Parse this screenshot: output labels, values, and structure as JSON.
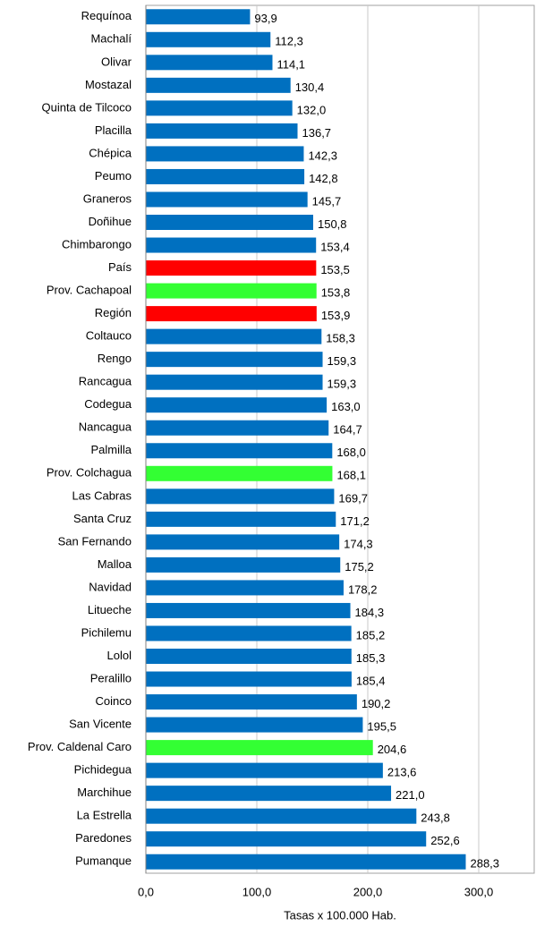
{
  "chart_data": {
    "type": "barh",
    "categories": [
      "Requínoa",
      "Machalí",
      "Olivar",
      "Mostazal",
      "Quinta de Tilcoco",
      "Placilla",
      "Chépica",
      "Peumo",
      "Graneros",
      "Doñihue",
      "Chimbarongo",
      "País",
      "Prov. Cachapoal",
      "Región",
      "Coltauco",
      "Rengo",
      "Rancagua",
      "Codegua",
      "Nancagua",
      "Palmilla",
      "Prov. Colchagua",
      "Las Cabras",
      "Santa Cruz",
      "San Fernando",
      "Malloa",
      "Navidad",
      "Litueche",
      "Pichilemu",
      "Lolol",
      "Peralillo",
      "Coinco",
      "San Vicente",
      "Prov. Caldenal Caro",
      "Pichidegua",
      "Marchihue",
      "La Estrella",
      "Paredones",
      "Pumanque"
    ],
    "values": [
      93.9,
      112.3,
      114.1,
      130.4,
      132.0,
      136.7,
      142.3,
      142.8,
      145.7,
      150.8,
      153.4,
      153.5,
      153.8,
      153.9,
      158.3,
      159.3,
      159.3,
      163.0,
      164.7,
      168.0,
      168.1,
      169.7,
      171.2,
      174.3,
      175.2,
      178.2,
      184.3,
      185.2,
      185.3,
      185.4,
      190.2,
      195.5,
      204.6,
      213.6,
      221.0,
      243.8,
      252.6,
      288.3
    ],
    "value_labels": [
      "93,9",
      "112,3",
      "114,1",
      "130,4",
      "132,0",
      "136,7",
      "142,3",
      "142,8",
      "145,7",
      "150,8",
      "153,4",
      "153,5",
      "153,8",
      "153,9",
      "158,3",
      "159,3",
      "159,3",
      "163,0",
      "164,7",
      "168,0",
      "168,1",
      "169,7",
      "171,2",
      "174,3",
      "175,2",
      "178,2",
      "184,3",
      "185,2",
      "185,3",
      "185,4",
      "190,2",
      "195,5",
      "204,6",
      "213,6",
      "221,0",
      "243,8",
      "252,6",
      "288,3"
    ],
    "colors": [
      "#0070c0",
      "#0070c0",
      "#0070c0",
      "#0070c0",
      "#0070c0",
      "#0070c0",
      "#0070c0",
      "#0070c0",
      "#0070c0",
      "#0070c0",
      "#0070c0",
      "#ff0000",
      "#33ff33",
      "#ff0000",
      "#0070c0",
      "#0070c0",
      "#0070c0",
      "#0070c0",
      "#0070c0",
      "#0070c0",
      "#33ff33",
      "#0070c0",
      "#0070c0",
      "#0070c0",
      "#0070c0",
      "#0070c0",
      "#0070c0",
      "#0070c0",
      "#0070c0",
      "#0070c0",
      "#0070c0",
      "#0070c0",
      "#33ff33",
      "#0070c0",
      "#0070c0",
      "#0070c0",
      "#0070c0",
      "#0070c0"
    ],
    "xlabel": "Tasas x 100.000 Hab.",
    "xlim": [
      0,
      350
    ],
    "xticks": [
      {
        "value": 0,
        "label": "0,0"
      },
      {
        "value": 100,
        "label": "100,0"
      },
      {
        "value": 200,
        "label": "200,0"
      },
      {
        "value": 300,
        "label": "300,0"
      }
    ],
    "grid": true
  }
}
